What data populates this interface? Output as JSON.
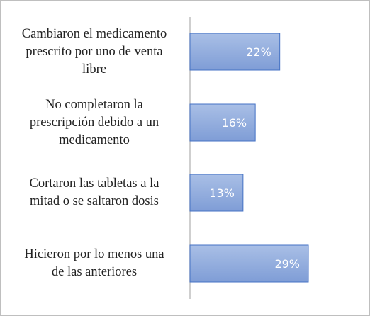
{
  "chart_data": {
    "type": "bar",
    "orientation": "horizontal",
    "categories": [
      "Cambiaron el medicamento prescrito por uno de venta libre",
      "No completaron la prescripción debido a un medicamento",
      "Cortaron las tabletas a la mitad o se saltaron dosis",
      "Hicieron por lo menos una de las anteriores"
    ],
    "category_lines": [
      [
        "Cambiaron el medicamento",
        "prescrito por uno de venta",
        "libre"
      ],
      [
        "No completaron la",
        "prescripción debido a un",
        "medicamento"
      ],
      [
        "Cortaron las tabletas a la",
        "mitad o se saltaron dosis"
      ],
      [
        "Hicieron por lo menos una",
        "de las anteriores"
      ]
    ],
    "values": [
      22,
      16,
      13,
      29
    ],
    "data_labels": [
      "22%",
      "16%",
      "13%",
      "29%"
    ],
    "title": "",
    "xlabel": "",
    "ylabel": "",
    "xlim": [
      0,
      30
    ],
    "grid": false,
    "legend": "none",
    "bar_color": "#8ea9db",
    "bar_border": "#4472c4",
    "axis_color": "#bfbfbf"
  }
}
